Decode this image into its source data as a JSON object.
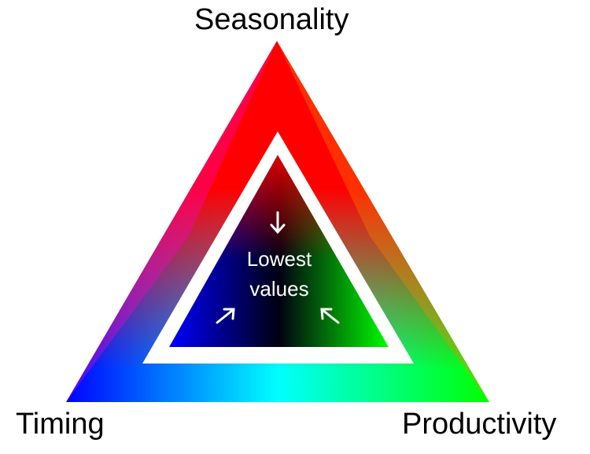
{
  "vertices": {
    "top": "Seasonality",
    "left": "Timing",
    "right": "Productivity"
  },
  "center": {
    "line1": "Lowest",
    "line2": "values"
  },
  "colors": {
    "seasonality": "#ff0000",
    "timing": "#0000ff",
    "productivity": "#00ff00",
    "background": "#ffffff",
    "center_text": "#ffffff"
  }
}
